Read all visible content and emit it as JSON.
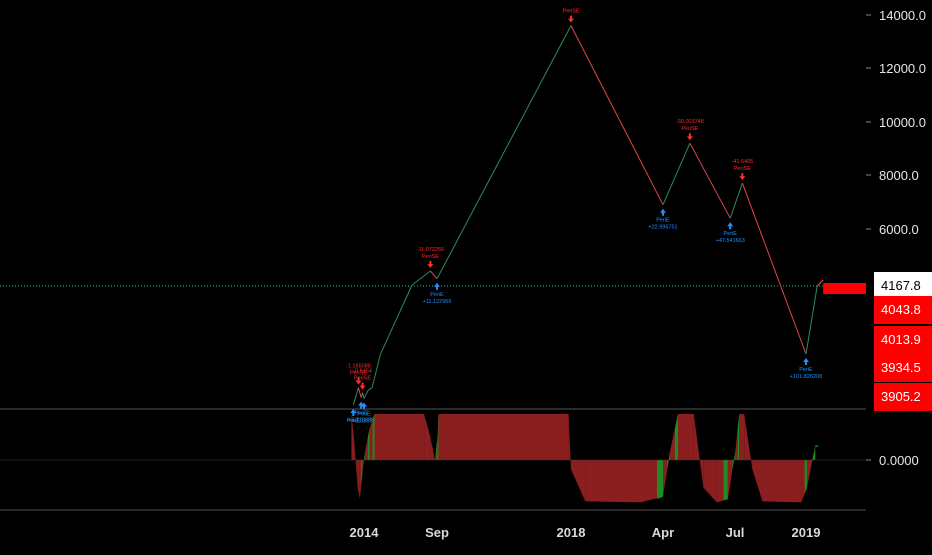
{
  "colors": {
    "background": "#000000",
    "up": "#2e8b57",
    "down": "#e0474c",
    "signal_up": "#1e90ff",
    "signal_down": "#ff2a2a",
    "osc_red": "#8b1f1f",
    "osc_green": "#1f8b24",
    "last_price_bg": "#ffffff",
    "red_tag_bg": "#ff0000"
  },
  "chart_data": {
    "type": "line",
    "x_ticks": [
      "2014",
      "Sep",
      "2018",
      "Apr",
      "Jul",
      "2019"
    ],
    "y_ticks": [
      "14000.0",
      "12000.0",
      "10000.0",
      "8000.0",
      "6000.0"
    ],
    "price_tags": [
      {
        "label": "4167.8",
        "style": "last"
      },
      {
        "label": "4043.8",
        "style": "red"
      },
      {
        "label": "4013.9",
        "style": "red"
      },
      {
        "label": "3934.5",
        "style": "red"
      },
      {
        "label": "3905.2",
        "style": "red"
      }
    ],
    "series": [
      {
        "values": [
          {
            "x": "2013-11-10",
            "y": 3300
          },
          {
            "x": "2013-12-05",
            "y": 3650
          },
          {
            "x": "2013-12-18",
            "y": 3450
          },
          {
            "x": "2013-12-25",
            "y": 3550
          },
          {
            "x": "2014-01-01",
            "y": 3430
          },
          {
            "x": "2014-01-15",
            "y": 3600
          },
          {
            "x": "2014-01-28",
            "y": 3650
          },
          {
            "x": "2014-02-25",
            "y": 3950
          },
          {
            "x": "2014-06-10",
            "y": 4200
          },
          {
            "x": "2014-08-10",
            "y": 4650
          },
          {
            "x": "2014-09-01",
            "y": 4400
          },
          {
            "x": "2018-01-01",
            "y": 13600
          },
          {
            "x": "2018-04-01",
            "y": 6900
          },
          {
            "x": "2018-05-05",
            "y": 9200
          },
          {
            "x": "2018-06-25",
            "y": 6400
          },
          {
            "x": "2018-07-20",
            "y": 7700
          },
          {
            "x": "2019-01-01",
            "y": 3950
          },
          {
            "x": "2019-01-12",
            "y": 4168
          }
        ]
      }
    ],
    "signals": [
      {
        "x": "2013-11-10",
        "y": 3300,
        "dir": "up",
        "labels": [
          "PeriE"
        ]
      },
      {
        "x": "2013-12-05",
        "y": 3650,
        "dir": "down",
        "labels": [
          "-1.165088",
          "PeriSE"
        ]
      },
      {
        "x": "2013-12-18",
        "y": 3450,
        "dir": "up",
        "labels": [
          "PeriE",
          "+3.715888"
        ]
      },
      {
        "x": "2013-12-25",
        "y": 3550,
        "dir": "down",
        "labels": [
          "-0.8454",
          "PeriSE"
        ]
      },
      {
        "x": "2014-01-01",
        "y": 3430,
        "dir": "up",
        "labels": [
          "PeriE",
          "+2.31071"
        ]
      },
      {
        "x": "2014-08-10",
        "y": 4650,
        "dir": "down",
        "labels": [
          "-11.072266",
          "PeriSE"
        ]
      },
      {
        "x": "2014-09-01",
        "y": 4400,
        "dir": "up",
        "labels": [
          "PeriE",
          "+11.122966"
        ]
      },
      {
        "x": "2018-01-01",
        "y": 13600,
        "dir": "down",
        "labels": [
          "PeriSE"
        ]
      },
      {
        "x": "2018-04-01",
        "y": 6900,
        "dir": "up",
        "labels": [
          "PeriE",
          "+22.996751"
        ]
      },
      {
        "x": "2018-05-05",
        "y": 9200,
        "dir": "down",
        "labels": [
          "-30.003748",
          "PeriSE"
        ]
      },
      {
        "x": "2018-06-25",
        "y": 6400,
        "dir": "up",
        "labels": [
          "PeriE",
          "+47.541663"
        ]
      },
      {
        "x": "2018-07-20",
        "y": 7700,
        "dir": "down",
        "labels": [
          "-41.6405",
          "PeriSE"
        ]
      },
      {
        "x": "2019-01-01",
        "y": 3950,
        "dir": "up",
        "labels": [
          "PeriE",
          "+101.826208"
        ]
      }
    ],
    "last_price": 4167.8,
    "oscillator": {
      "value_label": "0.0000",
      "range": [
        -1,
        1
      ],
      "points": [
        {
          "x": "2013-11-01",
          "v": 1.0
        },
        {
          "x": "2013-11-15",
          "v": 0.4
        },
        {
          "x": "2013-12-01",
          "v": -0.6
        },
        {
          "x": "2013-12-12",
          "v": -0.85
        },
        {
          "x": "2013-12-24",
          "v": -0.3
        },
        {
          "x": "2014-01-05",
          "v": 0.2
        },
        {
          "x": "2014-01-20",
          "v": 0.7
        },
        {
          "x": "2014-02-05",
          "v": 1.0
        },
        {
          "x": "2014-07-20",
          "v": 1.0
        },
        {
          "x": "2014-08-10",
          "v": 0.5
        },
        {
          "x": "2014-08-25",
          "v": 0.0
        },
        {
          "x": "2014-09-05",
          "v": 0.5
        },
        {
          "x": "2014-09-15",
          "v": 1.0
        },
        {
          "x": "2017-12-10",
          "v": 1.0
        },
        {
          "x": "2018-01-01",
          "v": -0.2
        },
        {
          "x": "2018-01-15",
          "v": -0.9
        },
        {
          "x": "2018-03-10",
          "v": -0.92
        },
        {
          "x": "2018-04-01",
          "v": -0.8
        },
        {
          "x": "2018-04-10",
          "v": 0.2
        },
        {
          "x": "2018-04-20",
          "v": 1.0
        },
        {
          "x": "2018-05-10",
          "v": 1.0
        },
        {
          "x": "2018-05-22",
          "v": -0.6
        },
        {
          "x": "2018-06-08",
          "v": -0.92
        },
        {
          "x": "2018-06-22",
          "v": -0.85
        },
        {
          "x": "2018-07-02",
          "v": 0.2
        },
        {
          "x": "2018-07-12",
          "v": 1.0
        },
        {
          "x": "2018-07-25",
          "v": 1.0
        },
        {
          "x": "2018-08-15",
          "v": -0.2
        },
        {
          "x": "2018-09-10",
          "v": -0.9
        },
        {
          "x": "2018-12-20",
          "v": -0.92
        },
        {
          "x": "2019-01-02",
          "v": -0.6
        },
        {
          "x": "2019-01-10",
          "v": 0.3
        }
      ]
    }
  }
}
